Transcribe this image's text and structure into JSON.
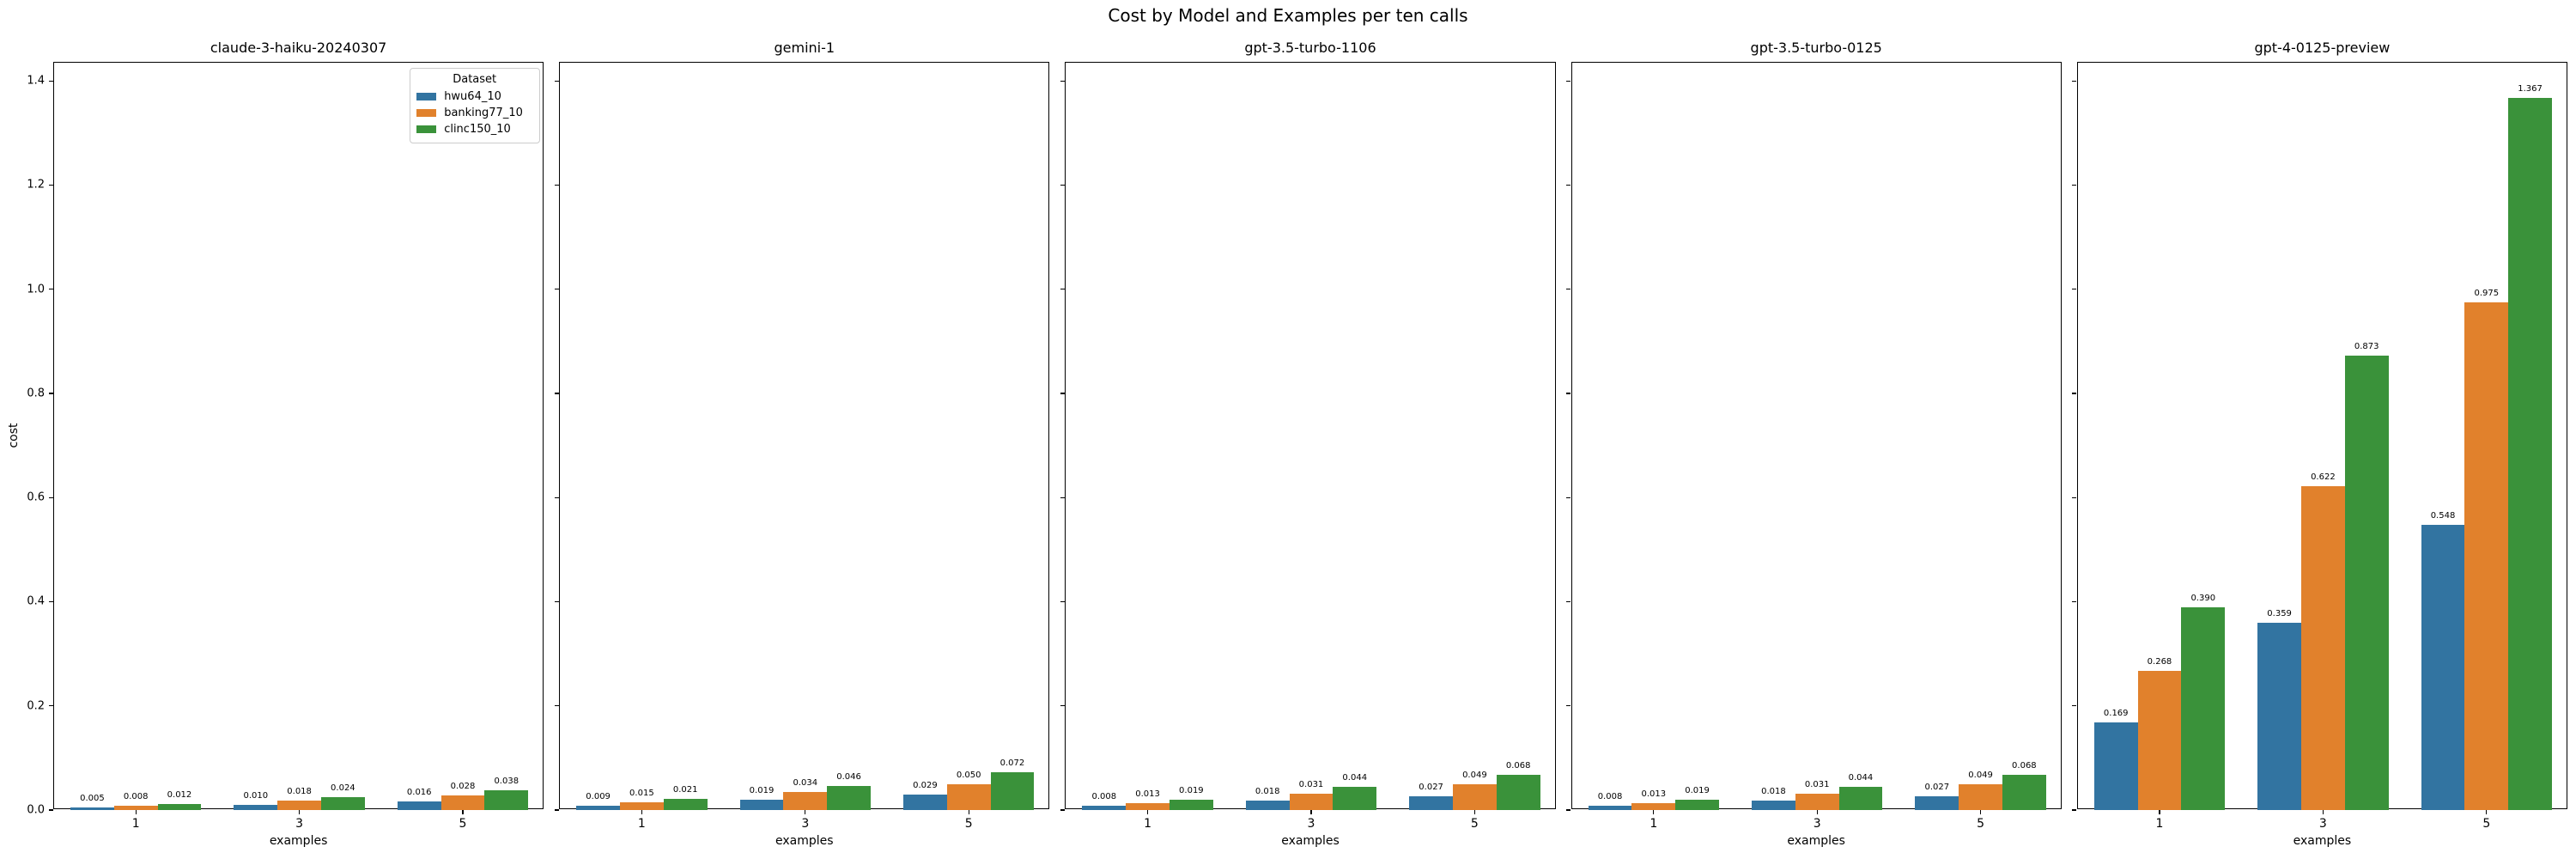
{
  "chart_data": {
    "type": "bar",
    "title": "Cost by Model and Examples per ten calls",
    "xlabel": "examples",
    "ylabel": "cost",
    "categories": [
      "1",
      "3",
      "5"
    ],
    "ylim": [
      0,
      1.435
    ],
    "yticks": [
      "0.0",
      "0.2",
      "0.4",
      "0.6",
      "0.8",
      "1.0",
      "1.2",
      "1.4"
    ],
    "grid": false,
    "legend": {
      "title": "Dataset",
      "position": "upper right of first panel",
      "entries": [
        "hwu64_10",
        "banking77_10",
        "clinc150_10"
      ]
    },
    "datasets": [
      {
        "label": "hwu64_10",
        "color": "#3274a1"
      },
      {
        "label": "banking77_10",
        "color": "#e1812c"
      },
      {
        "label": "clinc150_10",
        "color": "#3a923a"
      }
    ],
    "panels": [
      {
        "title": "claude-3-haiku-20240307",
        "series": [
          {
            "name": "hwu64_10",
            "values": [
              0.005,
              0.01,
              0.016
            ]
          },
          {
            "name": "banking77_10",
            "values": [
              0.008,
              0.018,
              0.028
            ]
          },
          {
            "name": "clinc150_10",
            "values": [
              0.012,
              0.024,
              0.038
            ]
          }
        ]
      },
      {
        "title": "gemini-1",
        "series": [
          {
            "name": "hwu64_10",
            "values": [
              0.009,
              0.019,
              0.029
            ]
          },
          {
            "name": "banking77_10",
            "values": [
              0.015,
              0.034,
              0.05
            ]
          },
          {
            "name": "clinc150_10",
            "values": [
              0.021,
              0.046,
              0.072
            ]
          }
        ]
      },
      {
        "title": "gpt-3.5-turbo-1106",
        "series": [
          {
            "name": "hwu64_10",
            "values": [
              0.008,
              0.018,
              0.027
            ]
          },
          {
            "name": "banking77_10",
            "values": [
              0.013,
              0.031,
              0.049
            ]
          },
          {
            "name": "clinc150_10",
            "values": [
              0.019,
              0.044,
              0.068
            ]
          }
        ]
      },
      {
        "title": "gpt-3.5-turbo-0125",
        "series": [
          {
            "name": "hwu64_10",
            "values": [
              0.008,
              0.018,
              0.027
            ]
          },
          {
            "name": "banking77_10",
            "values": [
              0.013,
              0.031,
              0.049
            ]
          },
          {
            "name": "clinc150_10",
            "values": [
              0.019,
              0.044,
              0.068
            ]
          }
        ]
      },
      {
        "title": "gpt-4-0125-preview",
        "series": [
          {
            "name": "hwu64_10",
            "values": [
              0.169,
              0.359,
              0.548
            ]
          },
          {
            "name": "banking77_10",
            "values": [
              0.268,
              0.622,
              0.975
            ]
          },
          {
            "name": "clinc150_10",
            "values": [
              0.39,
              0.873,
              1.367
            ]
          }
        ]
      }
    ]
  }
}
